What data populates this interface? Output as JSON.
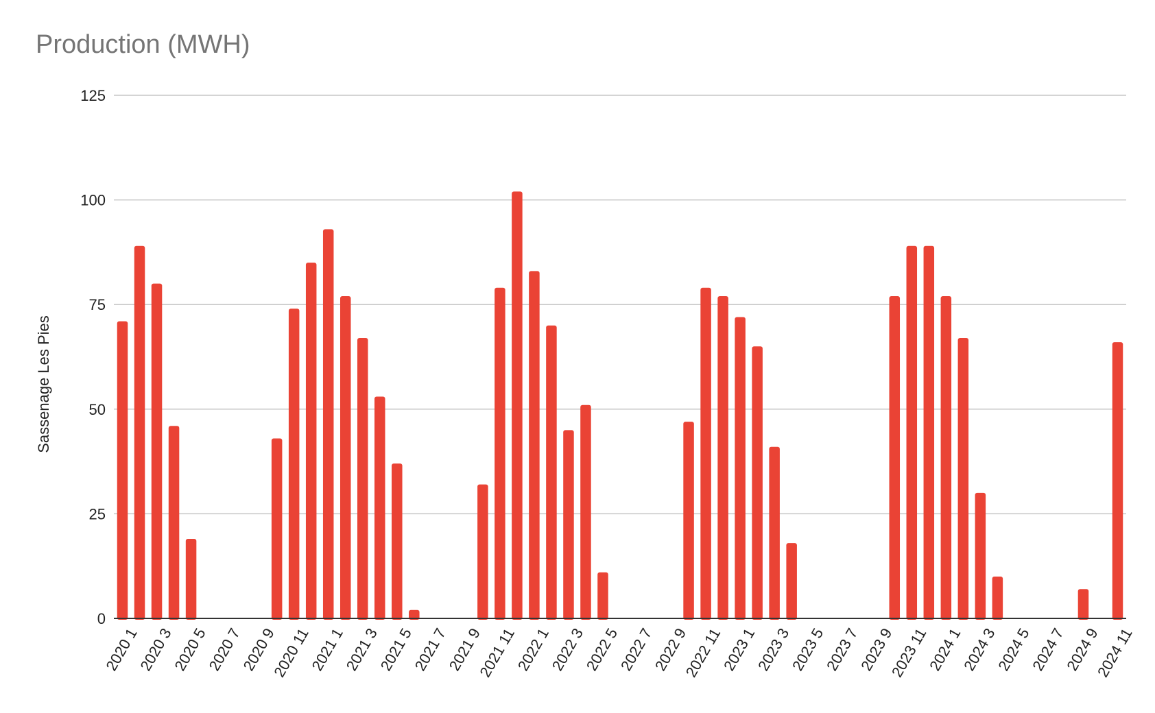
{
  "chart_data": {
    "type": "bar",
    "title": "Production (MWH)",
    "xlabel": "",
    "ylabel": "Sassenage Les Pies",
    "ylim": [
      0,
      125
    ],
    "yticks": [
      0,
      25,
      50,
      75,
      100,
      125
    ],
    "grid": true,
    "legend": "none",
    "bar_color": "#ea4335",
    "categories": [
      "2020 1",
      "2020 2",
      "2020 3",
      "2020 4",
      "2020 5",
      "2020 6",
      "2020 7",
      "2020 8",
      "2020 9",
      "2020 10",
      "2020 11",
      "2020 12",
      "2021 1",
      "2021 2",
      "2021 3",
      "2021 4",
      "2021 5",
      "2021 6",
      "2021 7",
      "2021 8",
      "2021 9",
      "2021 10",
      "2021 11",
      "2021 12",
      "2022 1",
      "2022 2",
      "2022 3",
      "2022 4",
      "2022 5",
      "2022 6",
      "2022 7",
      "2022 8",
      "2022 9",
      "2022 10",
      "2022 11",
      "2022 12",
      "2023 1",
      "2023 2",
      "2023 3",
      "2023 4",
      "2023 5",
      "2023 6",
      "2023 7",
      "2023 8",
      "2023 9",
      "2023 10",
      "2023 11",
      "2023 12",
      "2024 1",
      "2024 2",
      "2024 3",
      "2024 4",
      "2024 5",
      "2024 6",
      "2024 7",
      "2024 8",
      "2024 9",
      "2024 10",
      "2024 11"
    ],
    "tick_labels": [
      "2020 1",
      "2020 3",
      "2020 5",
      "2020 7",
      "2020 9",
      "2020 11",
      "2021 1",
      "2021 3",
      "2021 5",
      "2021 7",
      "2021 9",
      "2021 11",
      "2022 1",
      "2022 3",
      "2022 5",
      "2022 7",
      "2022 9",
      "2022 11",
      "2023 1",
      "2023 3",
      "2023 5",
      "2023 7",
      "2023 9",
      "2023 11",
      "2024 1",
      "2024 3",
      "2024 5",
      "2024 7",
      "2024 9",
      "2024 11"
    ],
    "values": [
      71,
      89,
      80,
      46,
      19,
      0,
      0,
      0,
      0,
      43,
      74,
      85,
      93,
      77,
      67,
      53,
      37,
      2,
      0,
      0,
      0,
      32,
      79,
      102,
      83,
      70,
      45,
      51,
      11,
      0,
      0,
      0,
      0,
      47,
      79,
      77,
      72,
      65,
      41,
      18,
      0,
      0,
      0,
      0,
      0,
      77,
      89,
      89,
      77,
      67,
      30,
      10,
      0,
      0,
      0,
      0,
      7,
      0,
      66
    ]
  }
}
